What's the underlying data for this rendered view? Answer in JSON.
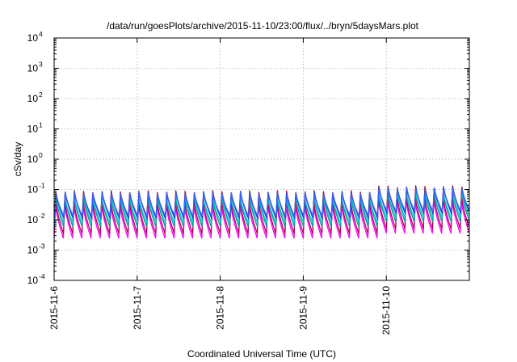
{
  "chart_data": {
    "type": "line",
    "title": "/data/run/goesPlots/archive/2015-11-10/23:00/flux/../bryn/5daysMars.plot",
    "xlabel": "Coordinated Universal Time (UTC)",
    "ylabel": "cSv/day",
    "x_range": [
      "2015-11-06",
      "2015-11-11"
    ],
    "x_tick_labels": [
      "2015-11-6",
      "2015-11-7",
      "2015-11-8",
      "2015-11-9",
      "2015-11-10"
    ],
    "y_scale": "log",
    "y_range": [
      0.0001,
      10000
    ],
    "y_tick_labels": [
      {
        "base": "10",
        "exp": "4"
      },
      {
        "base": "10",
        "exp": "3"
      },
      {
        "base": "10",
        "exp": "2"
      },
      {
        "base": "10",
        "exp": "1"
      },
      {
        "base": "10",
        "exp": "0"
      },
      {
        "base": "10",
        "exp": "-1"
      },
      {
        "base": "10",
        "exp": "-2"
      },
      {
        "base": "10",
        "exp": "-3"
      },
      {
        "base": "10",
        "exp": "-4"
      }
    ],
    "grid": true,
    "legend": "none",
    "pattern": {
      "cycles_per_day": 9,
      "description": "sawtooth: sharp rise then gradual decay each cycle"
    },
    "series": [
      {
        "color": "#ff00ff",
        "peak": 0.03,
        "trough": 0.0025
      },
      {
        "color": "#b30059",
        "peak": 0.04,
        "trough": 0.0035
      },
      {
        "color": "#00a0a0",
        "peak": 0.055,
        "trough": 0.006
      },
      {
        "color": "#00c8c8",
        "peak": 0.06,
        "trough": 0.008
      },
      {
        "color": "#e00000",
        "peak": 0.085,
        "trough": 0.012
      },
      {
        "color": "#1f3cc8",
        "peak": 0.08,
        "trough": 0.011
      },
      {
        "color": "#3366ff",
        "peak": 0.075,
        "trough": 0.013
      }
    ],
    "late_rise": {
      "start_day": 3.8,
      "factor": 1.45
    }
  }
}
